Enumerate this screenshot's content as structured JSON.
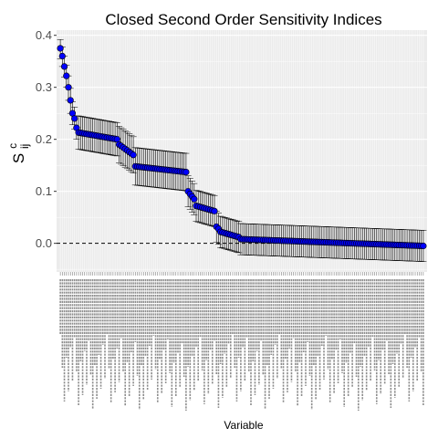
{
  "chart_data": {
    "type": "scatter",
    "title": "Closed Second Order Sensitivity Indices",
    "xlabel": "Variable",
    "ylabel": "S",
    "ylabel_sup": "c",
    "ylabel_sub": "ij",
    "ylim": [
      -0.055,
      0.41
    ],
    "yticks": [
      "0.0",
      "0.1",
      "0.2",
      "0.3",
      "0.4"
    ],
    "ytick_values": [
      0.0,
      0.1,
      0.2,
      0.3,
      0.4
    ],
    "n_points": 180,
    "reference_line": 0,
    "grid": true,
    "error_bar_color": "#000000",
    "point_color": "#0000ff",
    "early_points": [
      {
        "y": 0.375,
        "lo": 0.355,
        "hi": 0.392
      },
      {
        "y": 0.36,
        "lo": 0.34,
        "hi": 0.378
      },
      {
        "y": 0.34,
        "lo": 0.32,
        "hi": 0.36
      },
      {
        "y": 0.322,
        "lo": 0.3,
        "hi": 0.342
      },
      {
        "y": 0.3,
        "lo": 0.275,
        "hi": 0.322
      },
      {
        "y": 0.275,
        "lo": 0.25,
        "hi": 0.298
      },
      {
        "y": 0.25,
        "lo": 0.228,
        "hi": 0.272
      },
      {
        "y": 0.24,
        "lo": 0.22,
        "hi": 0.262
      },
      {
        "y": 0.222,
        "lo": 0.2,
        "hi": 0.245
      }
    ],
    "segments": [
      {
        "count": 20,
        "y_start": 0.213,
        "y_end": 0.2,
        "half_err": 0.032
      },
      {
        "count": 8,
        "y_start": 0.19,
        "y_end": 0.17,
        "half_err": 0.035
      },
      {
        "count": 26,
        "y_start": 0.148,
        "y_end": 0.137,
        "half_err": 0.036
      },
      {
        "count": 4,
        "y_start": 0.1,
        "y_end": 0.085,
        "half_err": 0.03
      },
      {
        "count": 10,
        "y_start": 0.072,
        "y_end": 0.062,
        "half_err": 0.03
      },
      {
        "count": 2,
        "y_start": 0.032,
        "y_end": 0.028,
        "half_err": 0.03
      },
      {
        "count": 10,
        "y_start": 0.022,
        "y_end": 0.012,
        "half_err": 0.03
      },
      {
        "count": 91,
        "y_start": 0.008,
        "y_end": -0.005,
        "half_err": 0.03
      }
    ]
  }
}
